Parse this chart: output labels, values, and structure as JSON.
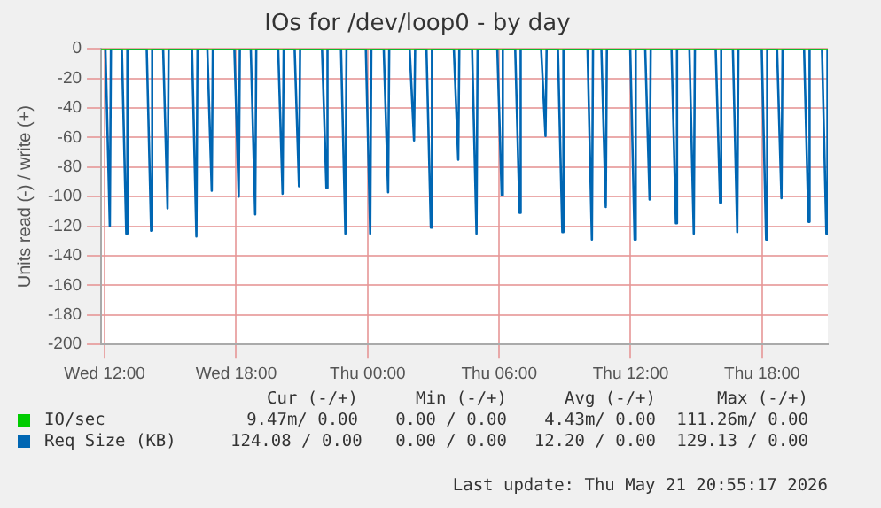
{
  "chart_data": {
    "type": "line",
    "title": "IOs for /dev/loop0 - by day",
    "ylabel": "Units read (-) / write (+)",
    "xlim": [
      "2026-05-20T11:50",
      "2026-05-21T21:00"
    ],
    "xticks": [
      {
        "value": "2026-05-20T12:00",
        "label": "Wed 12:00"
      },
      {
        "value": "2026-05-20T18:00",
        "label": "Wed 18:00"
      },
      {
        "value": "2026-05-21T00:00",
        "label": "Thu 00:00"
      },
      {
        "value": "2026-05-21T06:00",
        "label": "Thu 06:00"
      },
      {
        "value": "2026-05-21T12:00",
        "label": "Thu 12:00"
      },
      {
        "value": "2026-05-21T18:00",
        "label": "Thu 18:00"
      }
    ],
    "ylim": [
      -200,
      0
    ],
    "yticks": [
      0,
      -20,
      -40,
      -60,
      -80,
      -100,
      -120,
      -140,
      -160,
      -180,
      -200
    ],
    "grid": true,
    "legend": "bottom",
    "marker": "none",
    "line_style": "solid",
    "series": [
      {
        "name": "IO/sec",
        "color": "#00cc00",
        "x": [
          "2026-05-20T11:50",
          "2026-05-21T21:00"
        ],
        "values": [
          0,
          0
        ]
      },
      {
        "name": "Req Size (KB)",
        "color": "#0066b3",
        "x": [
          "2026-05-20T12:02",
          "2026-05-20T12:14",
          "2026-05-20T12:17",
          "2026-05-20T12:47",
          "2026-05-20T12:59",
          "2026-05-20T13:02",
          "2026-05-20T13:55",
          "2026-05-20T14:07",
          "2026-05-20T14:10",
          "2026-05-20T14:40",
          "2026-05-20T14:52",
          "2026-05-20T14:55",
          "2026-05-20T15:59",
          "2026-05-20T16:11",
          "2026-05-20T16:14",
          "2026-05-20T16:41",
          "2026-05-20T16:53",
          "2026-05-20T16:56",
          "2026-05-20T17:55",
          "2026-05-20T18:07",
          "2026-05-20T18:10",
          "2026-05-20T18:40",
          "2026-05-20T18:52",
          "2026-05-20T18:55",
          "2026-05-20T19:55",
          "2026-05-20T20:07",
          "2026-05-20T20:10",
          "2026-05-20T20:40",
          "2026-05-20T20:52",
          "2026-05-20T20:55",
          "2026-05-20T21:55",
          "2026-05-20T22:07",
          "2026-05-20T22:10",
          "2026-05-20T22:47",
          "2026-05-20T22:59",
          "2026-05-20T23:02",
          "2026-05-20T23:55",
          "2026-05-21T00:07",
          "2026-05-21T00:10",
          "2026-05-21T00:44",
          "2026-05-21T00:56",
          "2026-05-21T00:59",
          "2026-05-21T01:55",
          "2026-05-21T02:07",
          "2026-05-21T02:10",
          "2026-05-21T02:41",
          "2026-05-21T02:53",
          "2026-05-21T02:56",
          "2026-05-21T03:56",
          "2026-05-21T04:08",
          "2026-05-21T04:11",
          "2026-05-21T04:46",
          "2026-05-21T04:58",
          "2026-05-21T05:01",
          "2026-05-21T05:55",
          "2026-05-21T06:07",
          "2026-05-21T06:10",
          "2026-05-21T06:44",
          "2026-05-21T06:56",
          "2026-05-21T06:59",
          "2026-05-21T07:55",
          "2026-05-21T08:07",
          "2026-05-21T08:10",
          "2026-05-21T08:41",
          "2026-05-21T08:53",
          "2026-05-21T08:56",
          "2026-05-21T10:02",
          "2026-05-21T10:14",
          "2026-05-21T10:17",
          "2026-05-21T10:40",
          "2026-05-21T10:52",
          "2026-05-21T10:55",
          "2026-05-21T11:59",
          "2026-05-21T12:11",
          "2026-05-21T12:14",
          "2026-05-21T12:40",
          "2026-05-21T12:52",
          "2026-05-21T12:55",
          "2026-05-21T13:52",
          "2026-05-21T14:04",
          "2026-05-21T14:07",
          "2026-05-21T14:41",
          "2026-05-21T14:53",
          "2026-05-21T14:56",
          "2026-05-21T15:53",
          "2026-05-21T16:05",
          "2026-05-21T16:08",
          "2026-05-21T16:40",
          "2026-05-21T16:52",
          "2026-05-21T16:55",
          "2026-05-21T17:59",
          "2026-05-21T18:11",
          "2026-05-21T18:14",
          "2026-05-21T18:41",
          "2026-05-21T18:53",
          "2026-05-21T18:56",
          "2026-05-21T19:55",
          "2026-05-21T20:07",
          "2026-05-21T20:10",
          "2026-05-21T20:44",
          "2026-05-21T20:56",
          "2026-05-21T20:59"
        ],
        "values": [
          0,
          -120,
          0,
          0,
          -125,
          0,
          0,
          -123,
          0,
          0,
          -108,
          0,
          0,
          -127,
          0,
          0,
          -96,
          0,
          0,
          -100,
          0,
          0,
          -112,
          0,
          0,
          -98,
          0,
          0,
          -93,
          0,
          0,
          -94,
          0,
          0,
          -125,
          0,
          0,
          -125,
          0,
          0,
          -97,
          0,
          0,
          -62,
          0,
          0,
          -121,
          0,
          0,
          -75,
          0,
          0,
          -125,
          0,
          0,
          -99,
          0,
          0,
          -111,
          0,
          0,
          -59,
          0,
          0,
          -124,
          0,
          0,
          -129,
          0,
          0,
          -107,
          0,
          0,
          -129,
          0,
          0,
          -102,
          0,
          0,
          -118,
          0,
          0,
          -125,
          0,
          0,
          -104,
          0,
          0,
          -124,
          0,
          0,
          -129,
          0,
          0,
          -101,
          0,
          0,
          -117,
          0,
          0,
          -125,
          0
        ]
      }
    ],
    "annotations": [
      "Cur (-/+)",
      "Min (-/+)",
      "Avg (-/+)",
      "Max (-/+)",
      "9.47m/ 0.00",
      "0.00 / 0.00",
      "4.43m/ 0.00",
      "111.26m/ 0.00",
      "124.08 / 0.00",
      "0.00 / 0.00",
      "12.20 / 0.00",
      "129.13 / 0.00",
      "Last update: Thu May 21 20:55:17 2026"
    ]
  }
}
